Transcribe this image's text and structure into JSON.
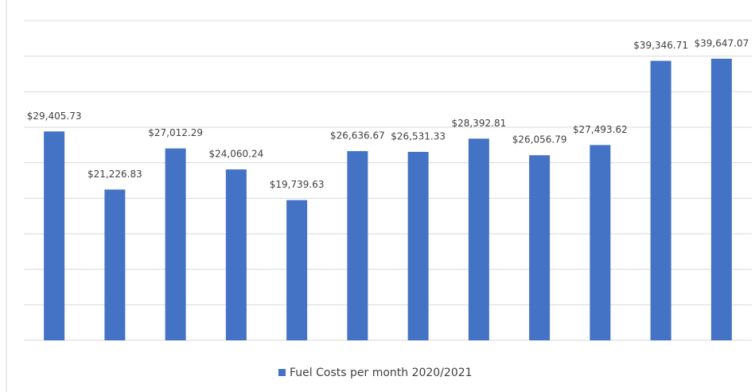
{
  "chart_data": {
    "type": "bar",
    "categories": [
      null,
      null,
      null,
      null,
      null,
      null,
      null,
      null,
      null,
      null,
      null,
      null
    ],
    "series": [
      {
        "name": "Fuel Costs per month 2020/2021",
        "color": "#4472c4",
        "values": [
          29405.73,
          21226.83,
          27012.29,
          24060.24,
          19739.63,
          26636.67,
          26531.33,
          28392.81,
          26056.79,
          27493.62,
          39346.71,
          39647.07
        ],
        "value_labels": [
          "$29,405.73",
          "$21,226.83",
          "$27,012.29",
          "$24,060.24",
          "$19,739.63",
          "$26,636.67",
          "$26,531.33",
          "$28,392.81",
          "$26,056.79",
          "$27,493.62",
          "$39,346.71",
          "$39,647.07"
        ]
      }
    ],
    "ylim": [
      0,
      45000
    ],
    "yticks": [
      0,
      5000,
      10000,
      15000,
      20000,
      25000,
      30000,
      35000,
      40000,
      45000
    ],
    "grid": true,
    "legend": "bottom"
  }
}
